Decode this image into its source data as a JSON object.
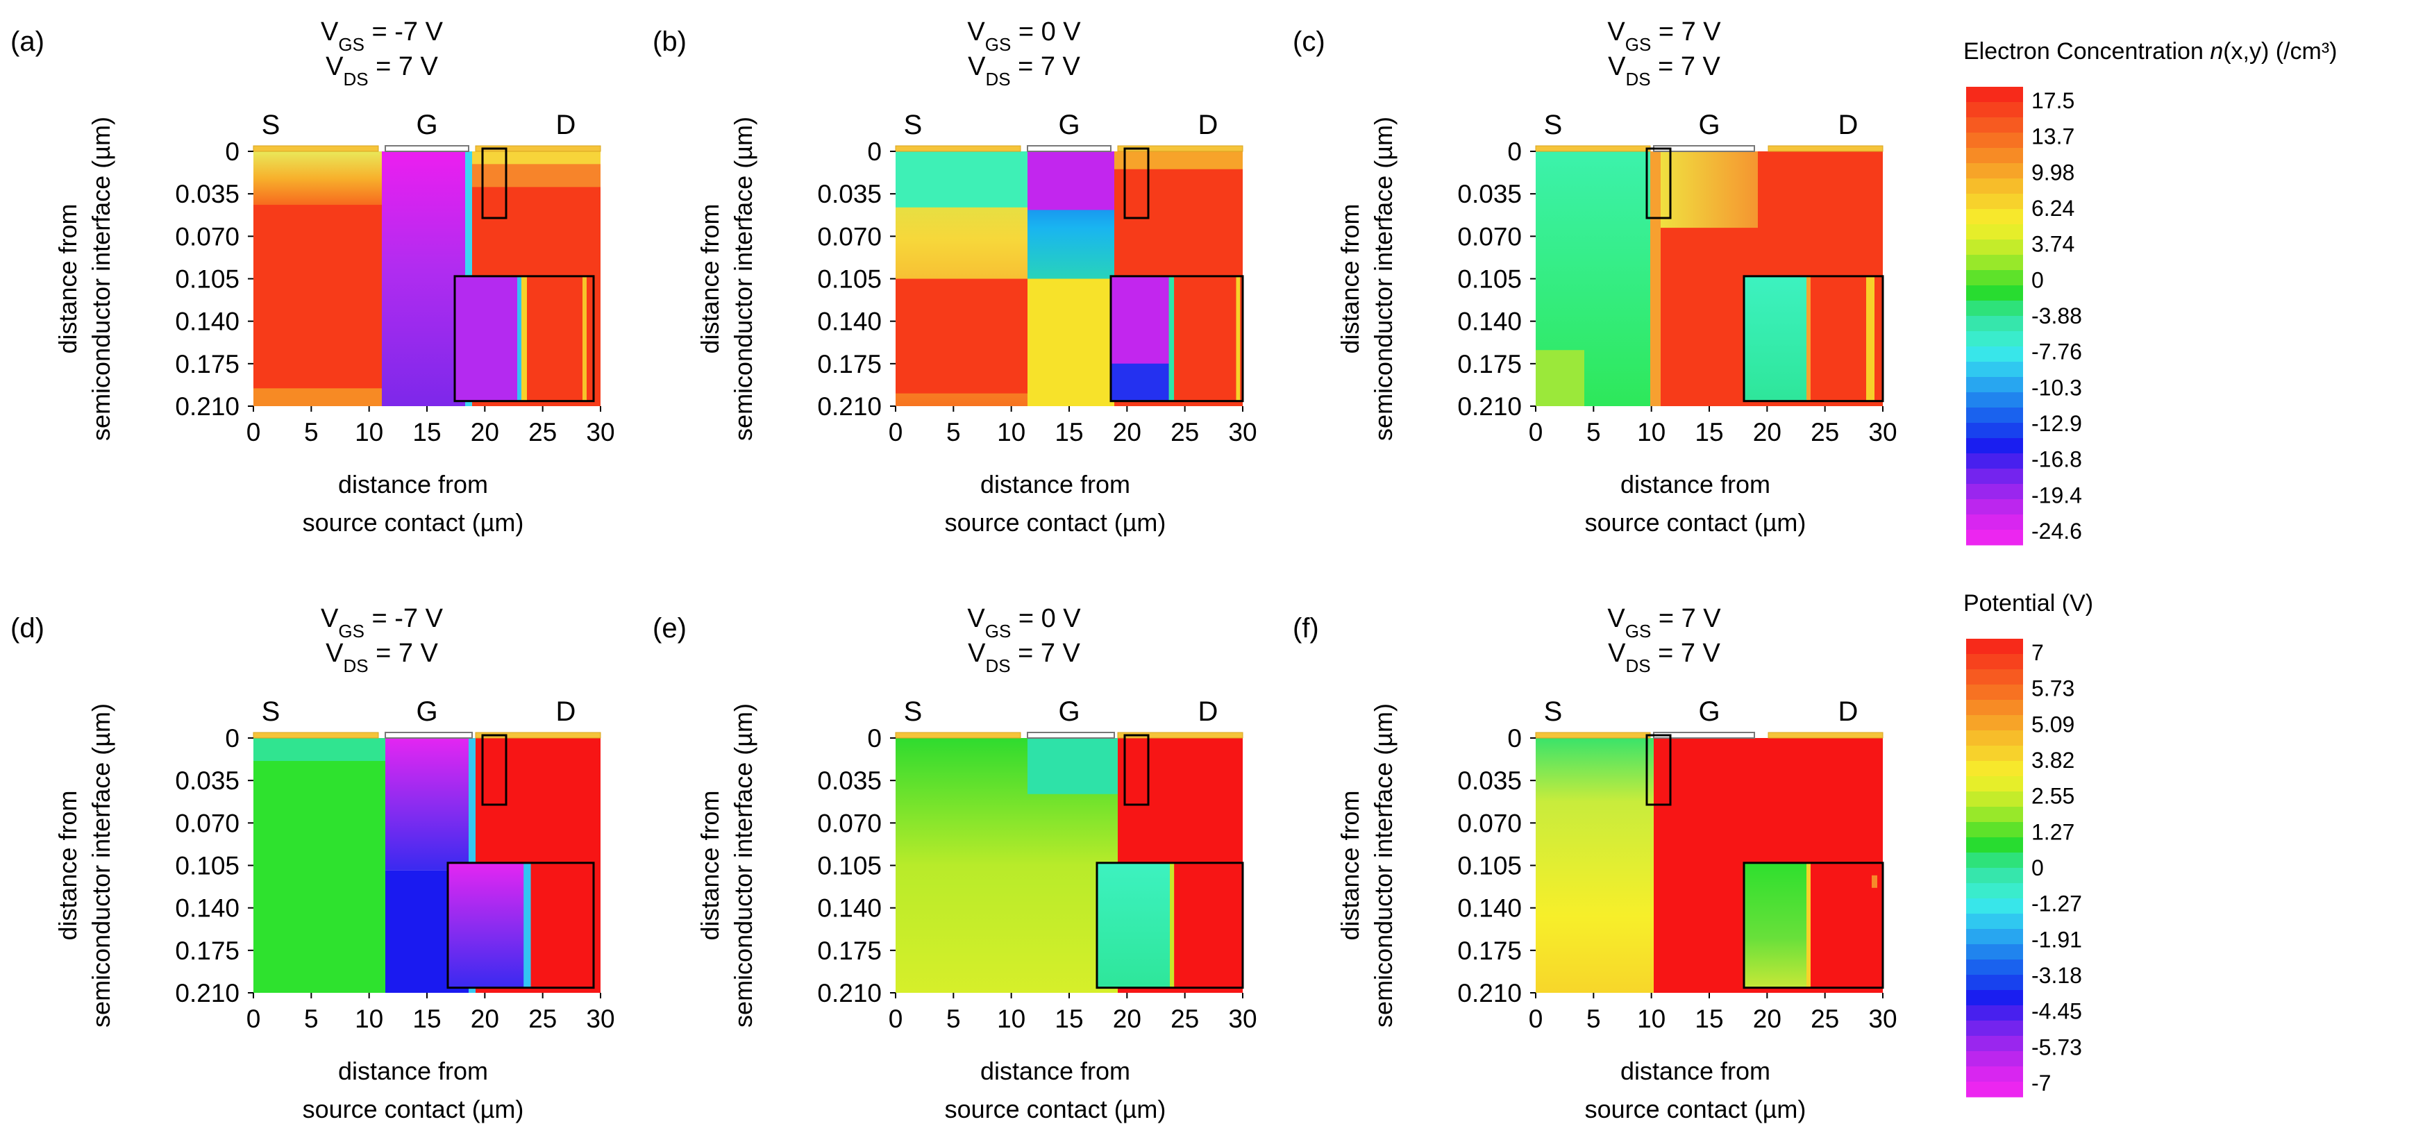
{
  "figure": {
    "panels": [
      {
        "label": "(a)",
        "vgs": "-7 V",
        "vds": "7 V",
        "quantity": "electron"
      },
      {
        "label": "(b)",
        "vgs": "0 V",
        "vds": "7 V",
        "quantity": "electron"
      },
      {
        "label": "(c)",
        "vgs": "7 V",
        "vds": "7 V",
        "quantity": "electron"
      },
      {
        "label": "(d)",
        "vgs": "-7 V",
        "vds": "7 V",
        "quantity": "potential"
      },
      {
        "label": "(e)",
        "vgs": "0 V",
        "vds": "7 V",
        "quantity": "potential"
      },
      {
        "label": "(f)",
        "vgs": "7 V",
        "vds": "7 V",
        "quantity": "potential"
      }
    ],
    "electrodes": [
      "S",
      "G",
      "D"
    ],
    "subscripts": {
      "gs": "GS",
      "ds": "DS"
    },
    "ylabel_line1": "distance from",
    "ylabel_line2": "semiconductor interface (µm)",
    "xlabel_line1": "distance from",
    "xlabel_line2": "source contact (µm)",
    "xticks": [
      "0",
      "5",
      "10",
      "15",
      "20",
      "25",
      "30"
    ],
    "yticks": [
      "0",
      "0.035",
      "0.070",
      "0.105",
      "0.140",
      "0.175",
      "0.210"
    ]
  },
  "colorbars": {
    "electron": {
      "title_prefix": "Electron Concentration ",
      "title_italic": "n",
      "title_suffix": "(x,y) (/cm³)",
      "labels": [
        "17.5",
        "13.7",
        "9.98",
        "6.24",
        "3.74",
        "0",
        "-3.88",
        "-7.76",
        "-10.3",
        "-12.9",
        "-16.8",
        "-19.4",
        "-24.6"
      ]
    },
    "potential": {
      "title": "Potential (V)",
      "labels": [
        "7",
        "5.73",
        "5.09",
        "3.82",
        "2.55",
        "1.27",
        "0",
        "-1.27",
        "-1.91",
        "-3.18",
        "-4.45",
        "-5.73",
        "-7"
      ]
    }
  },
  "chart_data": [
    {
      "type": "heatmap",
      "title": "(a) VGS = -7 V, VDS = 7 V",
      "quantity": "Electron Concentration n(x,y) (/cm³)",
      "xlabel": "distance from source contact (µm)",
      "ylabel": "distance from semiconductor interface (µm)",
      "xlim": [
        0,
        30
      ],
      "ylim": [
        0,
        0.21
      ],
      "electrodes": {
        "S": [
          0,
          11
        ],
        "G": [
          12,
          19
        ],
        "D": [
          20,
          30
        ]
      },
      "regions": [
        {
          "x": [
            0,
            11
          ],
          "y": [
            0,
            0.035
          ],
          "value": 8,
          "desc": "graded orange-yellow near interface"
        },
        {
          "x": [
            0,
            11
          ],
          "y": [
            0.035,
            0.21
          ],
          "value": 17.5
        },
        {
          "x": [
            11,
            19
          ],
          "y": [
            0,
            0.21
          ],
          "value": -22,
          "desc": "magenta to violet"
        },
        {
          "x": [
            19,
            30
          ],
          "y": [
            0,
            0.035
          ],
          "value": 12
        },
        {
          "x": [
            19,
            30
          ],
          "y": [
            0.035,
            0.21
          ],
          "value": 17.5
        }
      ]
    },
    {
      "type": "heatmap",
      "title": "(b) VGS = 0 V, VDS = 7 V",
      "quantity": "Electron Concentration n(x,y) (/cm³)",
      "xlim": [
        0,
        30
      ],
      "ylim": [
        0,
        0.21
      ],
      "regions": [
        {
          "x": [
            0,
            11
          ],
          "y": [
            0,
            0.035
          ],
          "value": -4
        },
        {
          "x": [
            0,
            11
          ],
          "y": [
            0.035,
            0.105
          ],
          "value": 10,
          "desc": "yellow to orange gradient"
        },
        {
          "x": [
            0,
            11
          ],
          "y": [
            0.105,
            0.21
          ],
          "value": 17.5
        },
        {
          "x": [
            11,
            19
          ],
          "y": [
            0,
            0.035
          ],
          "value": -22
        },
        {
          "x": [
            11,
            19
          ],
          "y": [
            0.035,
            0.105
          ],
          "value": -8,
          "desc": "blue to cyan to green"
        },
        {
          "x": [
            11,
            19
          ],
          "y": [
            0.105,
            0.21
          ],
          "value": 6.24
        },
        {
          "x": [
            19,
            30
          ],
          "y": [
            0,
            0.21
          ],
          "value": 17.5
        }
      ]
    },
    {
      "type": "heatmap",
      "title": "(c) VGS = 7 V, VDS = 7 V",
      "quantity": "Electron Concentration n(x,y) (/cm³)",
      "xlim": [
        0,
        30
      ],
      "ylim": [
        0,
        0.21
      ],
      "regions": [
        {
          "x": [
            0,
            10
          ],
          "y": [
            0,
            0.105
          ],
          "value": -3.88
        },
        {
          "x": [
            0,
            10
          ],
          "y": [
            0.105,
            0.21
          ],
          "value": 0,
          "desc": "green, yellow-green corner"
        },
        {
          "x": [
            10,
            19
          ],
          "y": [
            0,
            0.05
          ],
          "value": 8,
          "desc": "yellow-orange wedge"
        },
        {
          "x": [
            10,
            30
          ],
          "y": [
            0.035,
            0.21
          ],
          "value": 17.5
        }
      ]
    },
    {
      "type": "heatmap",
      "title": "(d) VGS = -7 V, VDS = 7 V",
      "quantity": "Potential (V)",
      "xlim": [
        0,
        30
      ],
      "ylim": [
        0,
        0.21
      ],
      "regions": [
        {
          "x": [
            0,
            11
          ],
          "y": [
            0,
            0.21
          ],
          "value": 1.27
        },
        {
          "x": [
            11,
            19
          ],
          "y": [
            0,
            0.105
          ],
          "value": -5.73,
          "desc": "magenta to violet"
        },
        {
          "x": [
            11,
            19
          ],
          "y": [
            0.105,
            0.21
          ],
          "value": -3.18
        },
        {
          "x": [
            19,
            30
          ],
          "y": [
            0,
            0.21
          ],
          "value": 7
        }
      ]
    },
    {
      "type": "heatmap",
      "title": "(e) VGS = 0 V, VDS = 7 V",
      "quantity": "Potential (V)",
      "xlim": [
        0,
        30
      ],
      "ylim": [
        0,
        0.21
      ],
      "regions": [
        {
          "x": [
            0,
            19
          ],
          "y": [
            0,
            0.035
          ],
          "value": 1.27
        },
        {
          "x": [
            0,
            19
          ],
          "y": [
            0.035,
            0.21
          ],
          "value": 3.82,
          "desc": "yellow-green"
        },
        {
          "x": [
            19,
            30
          ],
          "y": [
            0,
            0.21
          ],
          "value": 7
        }
      ]
    },
    {
      "type": "heatmap",
      "title": "(f) VGS = 7 V, VDS = 7 V",
      "quantity": "Potential (V)",
      "xlim": [
        0,
        30
      ],
      "ylim": [
        0,
        0.21
      ],
      "regions": [
        {
          "x": [
            0,
            10
          ],
          "y": [
            0,
            0.035
          ],
          "value": 1.27
        },
        {
          "x": [
            0,
            10
          ],
          "y": [
            0.035,
            0.21
          ],
          "value": 3.82,
          "desc": "yellow to orange-yellow"
        },
        {
          "x": [
            10,
            30
          ],
          "y": [
            0,
            0.21
          ],
          "value": 7
        }
      ]
    }
  ]
}
